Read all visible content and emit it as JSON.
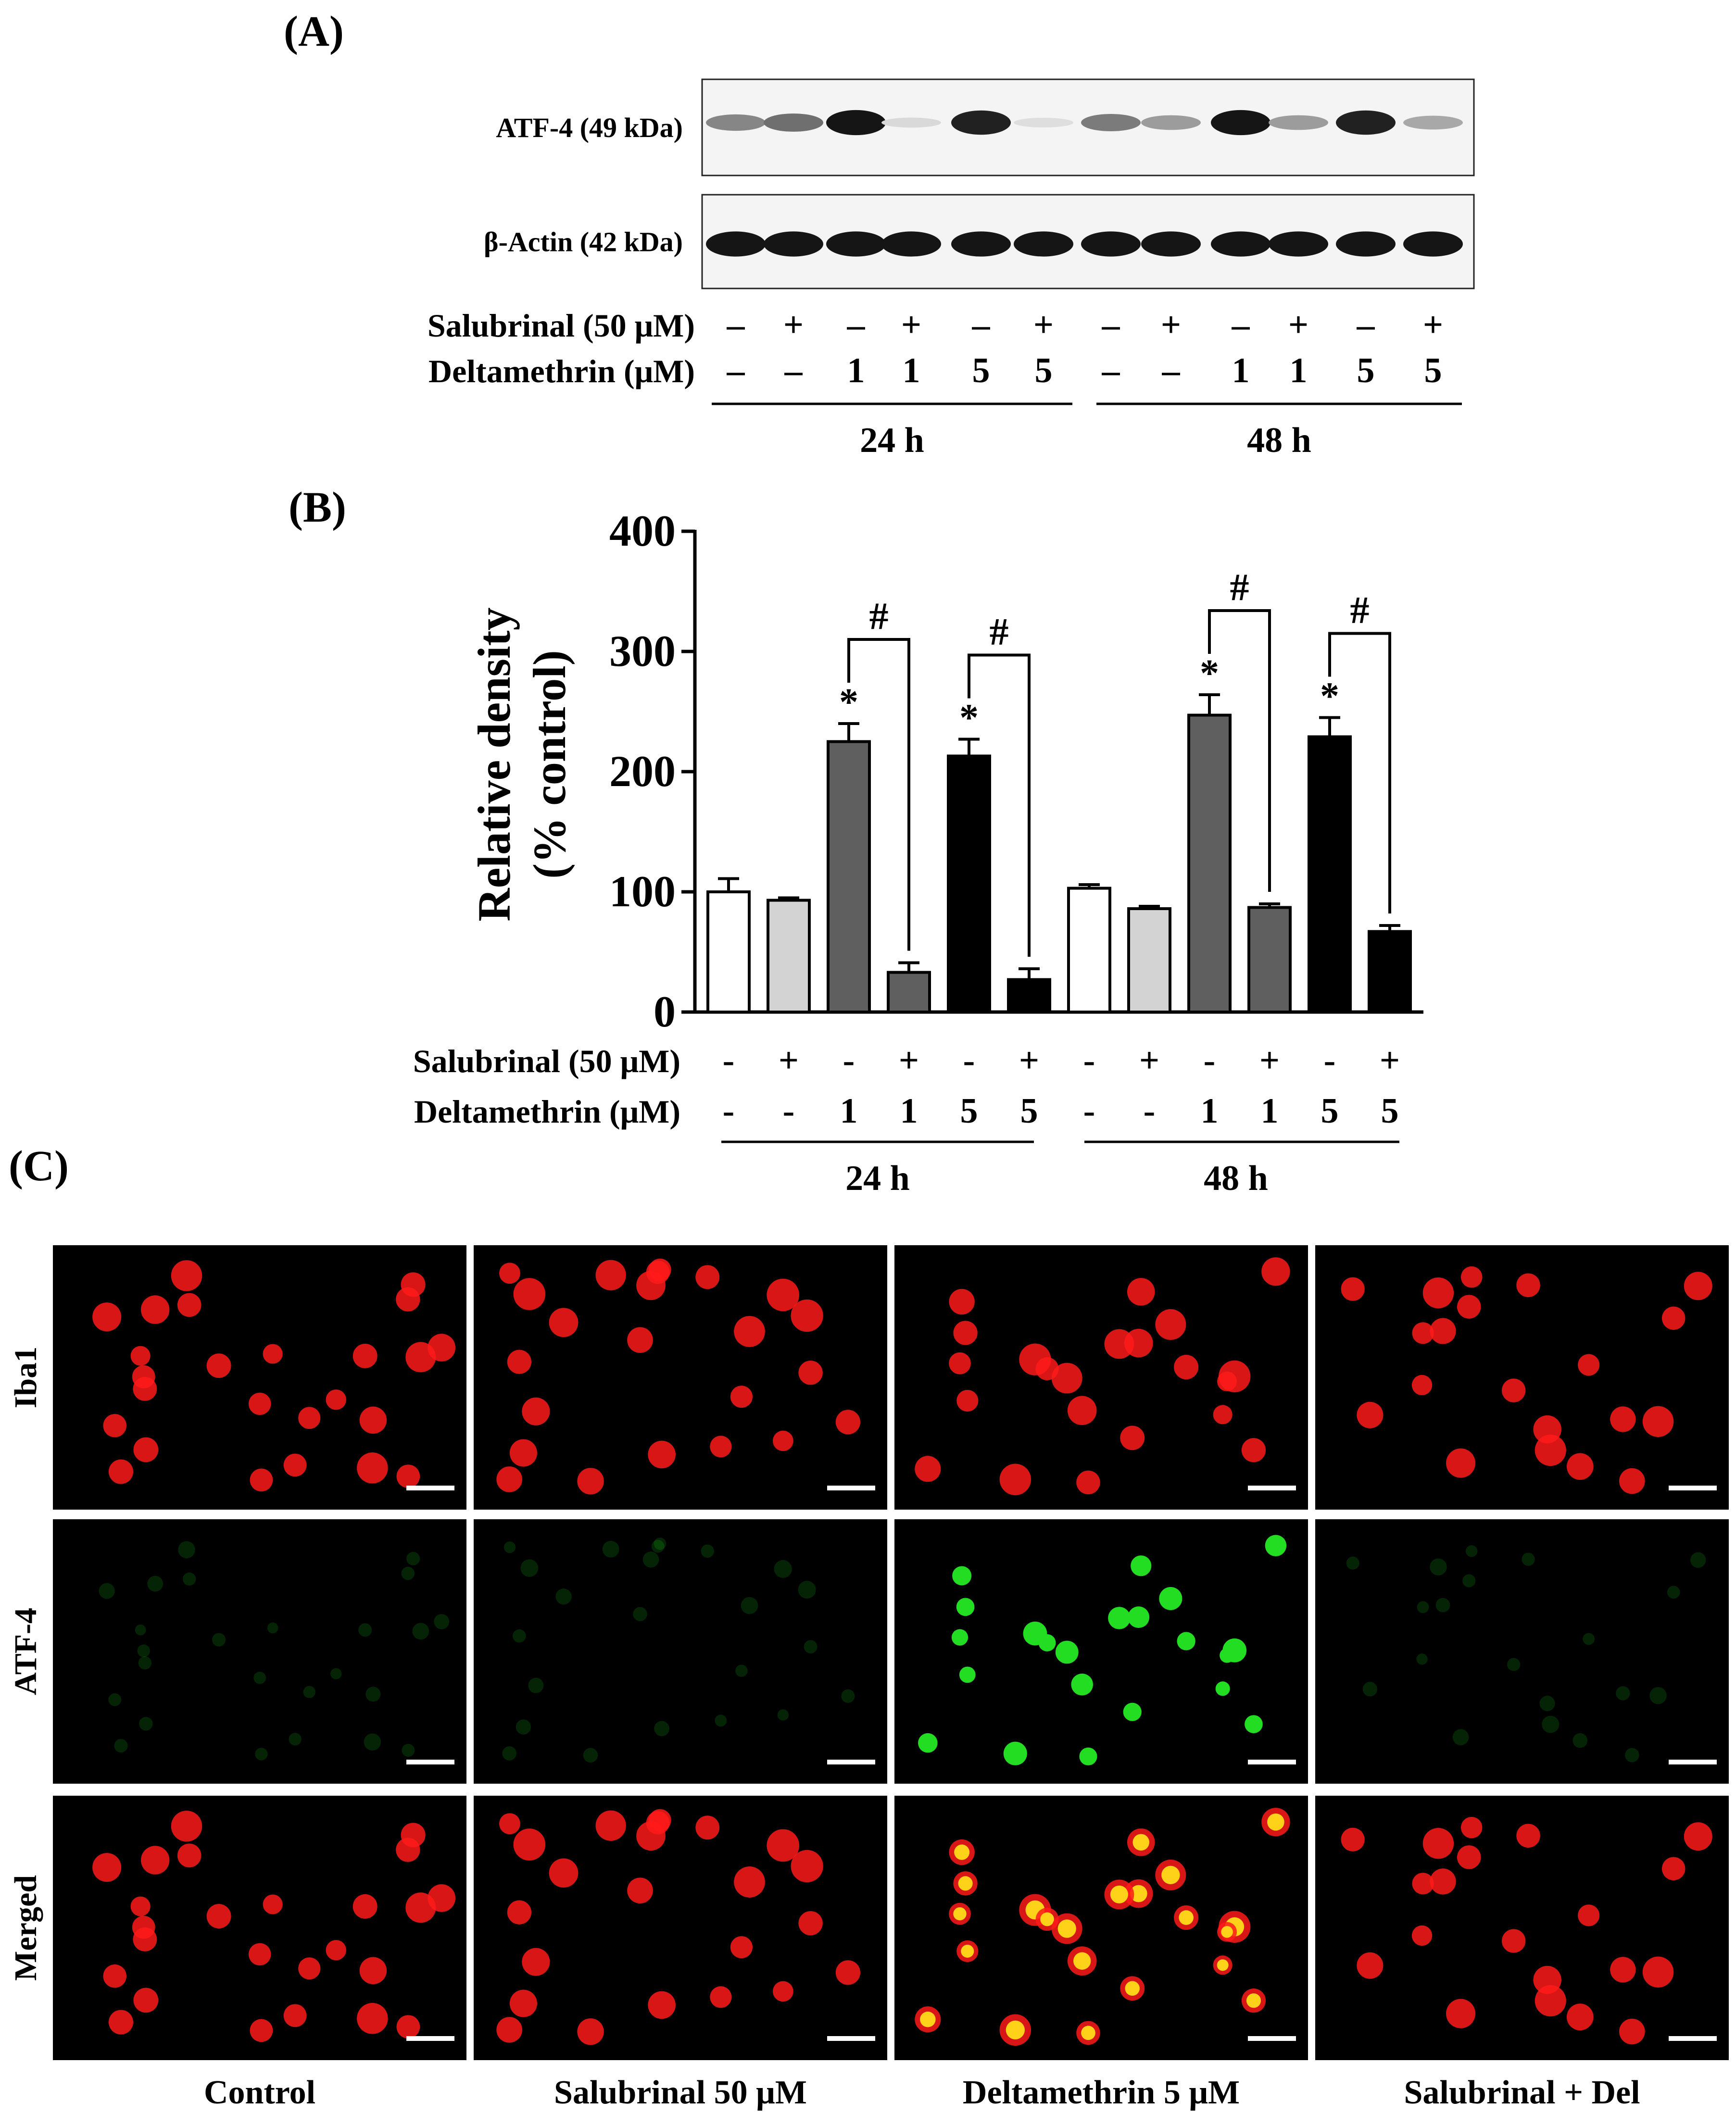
{
  "panels": {
    "a": "(A)",
    "b": "(B)",
    "c": "(C)"
  },
  "colors": {
    "bar_fills": [
      "#ffffff",
      "#d3d3d3",
      "#5f5f5f",
      "#5f5f5f",
      "#000000",
      "#000000"
    ],
    "iba1_stain": "#ff1a1a",
    "atf4_stain": "#22dd22",
    "merged_colocalized": "#ffd21a",
    "micrograph_background": "#000000"
  },
  "western_blot": {
    "bands": [
      {
        "label": "ATF-4 (49 kDa)",
        "intensity": [
          0.45,
          0.55,
          0.95,
          0.08,
          0.9,
          0.06,
          0.5,
          0.35,
          0.95,
          0.35,
          0.9,
          0.3
        ]
      },
      {
        "label": "β-Actin (42 kDa)",
        "intensity": [
          0.95,
          0.95,
          0.95,
          0.95,
          0.95,
          0.95,
          0.95,
          0.95,
          0.95,
          0.95,
          0.95,
          0.95
        ]
      }
    ],
    "conditions": [
      {
        "label": "Salubrinal (50 μM)",
        "values": [
          "–",
          "+",
          "–",
          "+",
          "–",
          "+",
          "–",
          "+",
          "–",
          "+",
          "–",
          "+"
        ]
      },
      {
        "label": "Deltamethrin (μM)",
        "values": [
          "–",
          "–",
          "1",
          "1",
          "5",
          "5",
          "–",
          "–",
          "1",
          "1",
          "5",
          "5"
        ]
      }
    ],
    "time_groups": [
      "24 h",
      "48 h"
    ]
  },
  "chart_data": {
    "type": "bar",
    "ylabel_line1": "Relative density",
    "ylabel_line2": "(% control)",
    "ylim": [
      0,
      400
    ],
    "yticks": [
      "0",
      "100",
      "200",
      "300",
      "400"
    ],
    "categories": [
      "24 h",
      "24 h",
      "24 h",
      "24 h",
      "24 h",
      "24 h",
      "48 h",
      "48 h",
      "48 h",
      "48 h",
      "48 h",
      "48 h"
    ],
    "values": [
      100,
      93,
      225,
      33,
      213,
      27,
      103,
      86,
      247,
      87,
      229,
      67
    ],
    "errors": [
      11,
      2,
      15,
      8,
      14,
      9,
      3,
      2,
      17,
      3,
      16,
      5
    ],
    "significance_above_bar": [
      "",
      "",
      "*",
      "",
      "*",
      "",
      "",
      "",
      "*",
      "",
      "*",
      ""
    ],
    "comparisons": [
      {
        "from": 2,
        "to": 3,
        "label": "#"
      },
      {
        "from": 4,
        "to": 5,
        "label": "#"
      },
      {
        "from": 8,
        "to": 9,
        "label": "#"
      },
      {
        "from": 10,
        "to": 11,
        "label": "#"
      }
    ],
    "conditions": [
      {
        "label": "Salubrinal (50 μM)",
        "values": [
          "-",
          "+",
          "-",
          "+",
          "-",
          "+",
          "-",
          "+",
          "-",
          "+",
          "-",
          "+"
        ]
      },
      {
        "label": "Deltamethrin (μM)",
        "values": [
          "-",
          "-",
          "1",
          "1",
          "5",
          "5",
          "-",
          "-",
          "1",
          "1",
          "5",
          "5"
        ]
      }
    ],
    "time_groups": [
      "24 h",
      "48 h"
    ],
    "grid": false
  },
  "micrographs": {
    "rows": [
      "Iba1",
      "ATF-4",
      "Merged"
    ],
    "columns": [
      "Control",
      "Salubrinal 50 μM",
      "Deltamethrin 5 μM",
      "Salubrinal + Del"
    ],
    "atf4_signal": [
      "faint",
      "faint",
      "strong",
      "faint"
    ]
  }
}
